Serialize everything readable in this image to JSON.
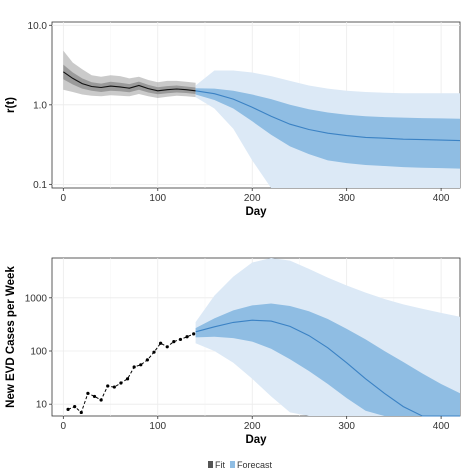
{
  "chart_data": [
    {
      "type": "line",
      "ylabel": "r(t)",
      "xlabel": "Day",
      "y_scale": "log",
      "xlim": [
        -12,
        420
      ],
      "ylim": [
        0.09,
        11
      ],
      "grid": true,
      "x_ticks": [
        0,
        100,
        200,
        300,
        400
      ],
      "x_tick_labels": [
        "0",
        "100",
        "200",
        "300",
        "400"
      ],
      "y_ticks": [
        0.1,
        1.0,
        10.0
      ],
      "y_tick_labels": [
        "0.1",
        "1.0",
        "10.0"
      ],
      "series": [
        {
          "name": "Fit",
          "color": "#111111",
          "band_color": "#8a8a8a",
          "x": [
            0,
            10,
            20,
            30,
            40,
            50,
            60,
            70,
            80,
            90,
            100,
            110,
            120,
            130,
            140
          ],
          "median": [
            2.6,
            2.15,
            1.85,
            1.7,
            1.65,
            1.72,
            1.68,
            1.62,
            1.75,
            1.6,
            1.5,
            1.55,
            1.58,
            1.55,
            1.5
          ],
          "band50_low": [
            2.1,
            1.8,
            1.6,
            1.5,
            1.45,
            1.5,
            1.48,
            1.44,
            1.55,
            1.43,
            1.36,
            1.4,
            1.43,
            1.41,
            1.37
          ],
          "band50_high": [
            3.2,
            2.55,
            2.15,
            1.92,
            1.85,
            1.95,
            1.9,
            1.82,
            1.96,
            1.78,
            1.66,
            1.72,
            1.75,
            1.7,
            1.65
          ],
          "band95_low": [
            1.55,
            1.45,
            1.35,
            1.3,
            1.28,
            1.32,
            1.3,
            1.28,
            1.37,
            1.28,
            1.22,
            1.26,
            1.3,
            1.28,
            1.25
          ],
          "band95_high": [
            4.8,
            3.4,
            2.8,
            2.35,
            2.25,
            2.35,
            2.3,
            2.15,
            2.25,
            2.05,
            1.92,
            2.0,
            2.0,
            1.95,
            1.9
          ]
        },
        {
          "name": "Forecast",
          "color": "#3b82c4",
          "band50_color": "#8fbde3",
          "band95_color": "#dce9f6",
          "x": [
            140,
            160,
            180,
            200,
            220,
            240,
            260,
            280,
            300,
            320,
            340,
            360,
            380,
            400,
            420
          ],
          "median": [
            1.5,
            1.38,
            1.18,
            0.93,
            0.72,
            0.57,
            0.49,
            0.44,
            0.41,
            0.39,
            0.38,
            0.37,
            0.365,
            0.36,
            0.355
          ],
          "band50_low": [
            1.35,
            1.15,
            0.9,
            0.62,
            0.42,
            0.3,
            0.24,
            0.2,
            0.185,
            0.175,
            0.17,
            0.165,
            0.162,
            0.16,
            0.158
          ],
          "band50_high": [
            1.62,
            1.6,
            1.5,
            1.35,
            1.18,
            1.0,
            0.88,
            0.8,
            0.75,
            0.72,
            0.7,
            0.69,
            0.68,
            0.675,
            0.67
          ],
          "band95_low": [
            1.25,
            0.9,
            0.5,
            0.2,
            0.09,
            0.09,
            0.09,
            0.09,
            0.09,
            0.09,
            0.09,
            0.09,
            0.09,
            0.09,
            0.09
          ],
          "band95_high": [
            1.75,
            2.7,
            2.7,
            2.55,
            2.3,
            2.0,
            1.75,
            1.6,
            1.5,
            1.45,
            1.42,
            1.4,
            1.4,
            1.4,
            1.4
          ]
        }
      ]
    },
    {
      "type": "line",
      "ylabel": "New EVD Cases per Week",
      "xlabel": "Day",
      "y_scale": "log",
      "xlim": [
        -12,
        420
      ],
      "ylim": [
        6,
        5600
      ],
      "grid": true,
      "x_ticks": [
        0,
        100,
        200,
        300,
        400
      ],
      "x_tick_labels": [
        "0",
        "100",
        "200",
        "300",
        "400"
      ],
      "y_ticks": [
        10,
        100,
        1000
      ],
      "y_tick_labels": [
        "10",
        "100",
        "1000"
      ],
      "series": [
        {
          "name": "Fit",
          "color": "#000000",
          "x": [
            5,
            12,
            19,
            26,
            33,
            40,
            47,
            54,
            61,
            68,
            75,
            82,
            89,
            96,
            103,
            110,
            117,
            124,
            131,
            138
          ],
          "values": [
            8,
            9,
            7,
            16,
            14,
            12,
            22,
            21,
            25,
            30,
            50,
            55,
            68,
            95,
            140,
            120,
            150,
            165,
            185,
            210
          ]
        },
        {
          "name": "Forecast",
          "color": "#3b82c4",
          "band50_color": "#8fbde3",
          "band95_color": "#dce9f6",
          "x": [
            140,
            160,
            180,
            200,
            220,
            240,
            260,
            280,
            300,
            320,
            340,
            360,
            380,
            400,
            420
          ],
          "median": [
            230,
            285,
            345,
            380,
            365,
            290,
            195,
            115,
            60,
            30,
            16,
            9,
            6,
            6,
            6
          ],
          "band50_low": [
            180,
            185,
            175,
            150,
            110,
            70,
            42,
            24,
            13,
            7.5,
            6,
            6,
            6,
            6,
            6
          ],
          "band50_high": [
            270,
            410,
            580,
            720,
            780,
            700,
            560,
            400,
            260,
            165,
            100,
            62,
            38,
            24,
            16
          ],
          "band95_low": [
            140,
            100,
            60,
            30,
            14,
            7,
            6,
            6,
            6,
            6,
            6,
            6,
            6,
            6,
            6
          ],
          "band95_high": [
            350,
            1100,
            2500,
            4600,
            5600,
            5000,
            3500,
            2400,
            1700,
            1250,
            950,
            750,
            620,
            520,
            440
          ]
        }
      ]
    }
  ],
  "legend": {
    "items": [
      {
        "label": "Fit",
        "color": "#555555"
      },
      {
        "label": "Forecast",
        "color": "#8fbde3"
      }
    ]
  }
}
